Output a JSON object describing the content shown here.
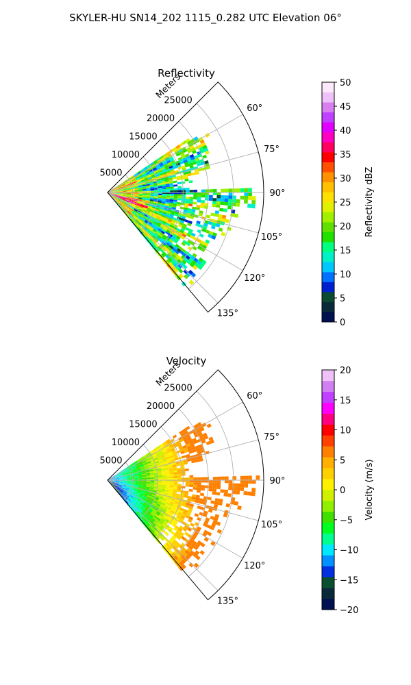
{
  "figure": {
    "title": "SKYLER-HU  SN14_202  1115_0.282 UTC Elevation 06°"
  },
  "chart_data": [
    {
      "type": "heatmap",
      "title": "Reflectivity",
      "radial_label": "Meters",
      "radial_ticks": [
        "5000",
        "10000",
        "15000",
        "20000",
        "25000"
      ],
      "radial_tick_values": [
        5000,
        10000,
        15000,
        20000,
        25000
      ],
      "rmax": 31000,
      "azimuth_range_deg": [
        45,
        140
      ],
      "azimuth_ticks": [
        "60°",
        "75°",
        "90°",
        "105°",
        "120°",
        "135°"
      ],
      "azimuth_tick_values": [
        60,
        75,
        90,
        105,
        120,
        135
      ],
      "grid": true,
      "colorbar": {
        "label": "Reflectivity dBZ",
        "min": 0,
        "max": 50,
        "ticks": [
          "0",
          "5",
          "10",
          "15",
          "20",
          "25",
          "30",
          "35",
          "40",
          "45",
          "50"
        ],
        "tick_values": [
          0,
          5,
          10,
          15,
          20,
          25,
          30,
          35,
          40,
          45,
          50
        ]
      },
      "typical_value_range": [
        10,
        35
      ]
    },
    {
      "type": "heatmap",
      "title": "Velocity",
      "radial_label": "Meters",
      "radial_ticks": [
        "5000",
        "10000",
        "15000",
        "20000",
        "25000"
      ],
      "radial_tick_values": [
        5000,
        10000,
        15000,
        20000,
        25000
      ],
      "rmax": 31000,
      "azimuth_range_deg": [
        45,
        140
      ],
      "azimuth_ticks": [
        "60°",
        "75°",
        "90°",
        "105°",
        "120°",
        "135°"
      ],
      "azimuth_tick_values": [
        60,
        75,
        90,
        105,
        120,
        135
      ],
      "grid": true,
      "colorbar": {
        "label": "Velocity (m/s)",
        "min": -20,
        "max": 20,
        "ticks": [
          "−20",
          "−15",
          "−10",
          "−5",
          "0",
          "5",
          "10",
          "15",
          "20"
        ],
        "tick_values": [
          -20,
          -15,
          -10,
          -5,
          0,
          5,
          10,
          15,
          20
        ]
      },
      "typical_value_range": [
        -12,
        8
      ]
    }
  ],
  "colors": {
    "dbz_palette": [
      "#001050",
      "#0a2a3a",
      "#0a4a30",
      "#0020d0",
      "#0070ff",
      "#00c8ff",
      "#00f0c8",
      "#00ff80",
      "#20e000",
      "#60e000",
      "#a0f000",
      "#e0f000",
      "#ffe000",
      "#ffc000",
      "#ff9000",
      "#ff5000",
      "#ff0000",
      "#ff0060",
      "#ff00c0",
      "#e000ff",
      "#c040ff",
      "#d880f0",
      "#f0c0f8",
      "#fbe8fb"
    ],
    "vel_palette": [
      "#001050",
      "#0a2a3a",
      "#0a5030",
      "#0030e0",
      "#0090ff",
      "#00e8ff",
      "#00ff90",
      "#00ff20",
      "#40e000",
      "#90f000",
      "#d0f000",
      "#fff000",
      "#ffd000",
      "#ffb000",
      "#ff8000",
      "#ff4000",
      "#ff0000",
      "#ff0080",
      "#ff00ff",
      "#c040ff",
      "#d080f0",
      "#f0c0f8"
    ]
  }
}
